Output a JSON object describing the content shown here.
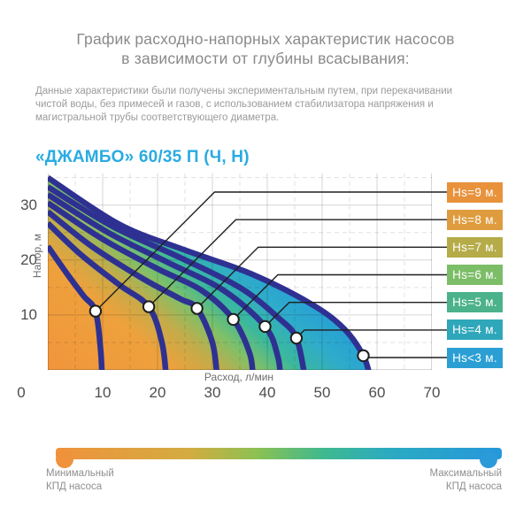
{
  "header": {
    "title_line1": "График расходно-напорных характеристик насосов",
    "title_line2": "в зависимости от глубины всасывания:",
    "description_lines": [
      "Данные характеристики были получены экспериментальным путем, при перекачивании",
      "чистой воды, без примесей и газов, с использованием стабилизатора напряжения и",
      "магистральной трубы соответствующего диаметра."
    ]
  },
  "chart_data": {
    "type": "area",
    "title": "«ДЖАМБО» 60/35 П (Ч, Н)",
    "xlabel": "Расход, л/мин",
    "ylabel": "Напор, м",
    "xlim": [
      0,
      70
    ],
    "ylim": [
      0,
      35.75
    ],
    "x_ticks": [
      0,
      10,
      20,
      30,
      40,
      50,
      60,
      70
    ],
    "y_ticks": [
      10,
      20,
      30
    ],
    "grid": {
      "solid_step": 10,
      "dashed_step": 5
    },
    "legend_position": "right",
    "curve_color": "#2E3192",
    "fill_gradient_stops": [
      {
        "off": 0.0,
        "color": "#F1953C"
      },
      {
        "off": 0.26,
        "color": "#EEA13C"
      },
      {
        "off": 0.36,
        "color": "#C2AC4A"
      },
      {
        "off": 0.44,
        "color": "#7FC068"
      },
      {
        "off": 0.52,
        "color": "#3BB89C"
      },
      {
        "off": 0.62,
        "color": "#2EABCB"
      },
      {
        "off": 0.78,
        "color": "#2297DB"
      },
      {
        "off": 1.0,
        "color": "#1E8FD5"
      }
    ],
    "series": [
      {
        "id": "hs9",
        "label": "Hs=9 м.",
        "badge_color": "#E8923C",
        "marker": [
          8.7,
          10.7
        ],
        "points": [
          [
            0,
            22.5
          ],
          [
            3.5,
            17.5
          ],
          [
            6.5,
            13.5
          ],
          [
            8.7,
            10.7
          ],
          [
            9.6,
            4
          ],
          [
            9.9,
            -1.5
          ]
        ]
      },
      {
        "id": "hs8",
        "label": "Hs=8 м.",
        "badge_color": "#DE9C3E",
        "marker": [
          18.4,
          11.5
        ],
        "points": [
          [
            0,
            26.7
          ],
          [
            6,
            21
          ],
          [
            13,
            15.5
          ],
          [
            18.4,
            11.5
          ],
          [
            20.8,
            5
          ],
          [
            21.6,
            -1.5
          ]
        ]
      },
      {
        "id": "hs7",
        "label": "Hs=7 м.",
        "badge_color": "#B5AB48",
        "marker": [
          27.2,
          11.2
        ],
        "points": [
          [
            0,
            28.8
          ],
          [
            8,
            22.5
          ],
          [
            17,
            16.8
          ],
          [
            24,
            13
          ],
          [
            27.2,
            11.2
          ],
          [
            30,
            5
          ],
          [
            30.9,
            -1.5
          ]
        ]
      },
      {
        "id": "hs6",
        "label": "Hs=6 м.",
        "badge_color": "#7CBD67",
        "marker": [
          33.8,
          9.2
        ],
        "points": [
          [
            0,
            30.4
          ],
          [
            10,
            23.8
          ],
          [
            20,
            18.4
          ],
          [
            28,
            14.5
          ],
          [
            33.8,
            9.2
          ],
          [
            36.8,
            3
          ],
          [
            37.4,
            -1.5
          ]
        ]
      },
      {
        "id": "hs5",
        "label": "Hs=5 м.",
        "badge_color": "#4BB28C",
        "marker": [
          39.6,
          7.9
        ],
        "points": [
          [
            0,
            31.9
          ],
          [
            11,
            25
          ],
          [
            22,
            19.5
          ],
          [
            32,
            14.5
          ],
          [
            39.6,
            7.9
          ],
          [
            41.9,
            2.5
          ],
          [
            42.4,
            -1.5
          ]
        ]
      },
      {
        "id": "hs4",
        "label": "Hs=4 м.",
        "badge_color": "#2FA7BA",
        "marker": [
          45.3,
          5.8
        ],
        "points": [
          [
            0,
            33.3
          ],
          [
            12,
            26
          ],
          [
            24,
            20.5
          ],
          [
            35,
            15
          ],
          [
            42,
            9.5
          ],
          [
            45.3,
            5.8
          ],
          [
            46.9,
            -1.5
          ]
        ]
      },
      {
        "id": "hs3",
        "label": "Hs<3 м.",
        "badge_color": "#2B9FD4",
        "marker": [
          57.5,
          2.6
        ],
        "envelope": true,
        "points": [
          [
            0,
            35
          ],
          [
            13,
            26.5
          ],
          [
            25,
            21.8
          ],
          [
            37,
            17.5
          ],
          [
            48,
            12
          ],
          [
            54,
            7.5
          ],
          [
            57.5,
            2.6
          ],
          [
            58.8,
            -1.5
          ]
        ]
      }
    ]
  },
  "efficiency_scale": {
    "min_label_line1": "Минимальный",
    "min_label_line2": "КПД насоса",
    "max_label_line1": "Максимальный",
    "max_label_line2": "КПД насоса",
    "min_color": "#F0923C",
    "max_color": "#2B9AD8",
    "gradient_stops": [
      {
        "off": 0.0,
        "color": "#F0923C"
      },
      {
        "off": 0.3,
        "color": "#D3AC40"
      },
      {
        "off": 0.45,
        "color": "#8CC152"
      },
      {
        "off": 0.6,
        "color": "#3FB98E"
      },
      {
        "off": 0.75,
        "color": "#2BAAC2"
      },
      {
        "off": 1.0,
        "color": "#2697DB"
      }
    ]
  }
}
